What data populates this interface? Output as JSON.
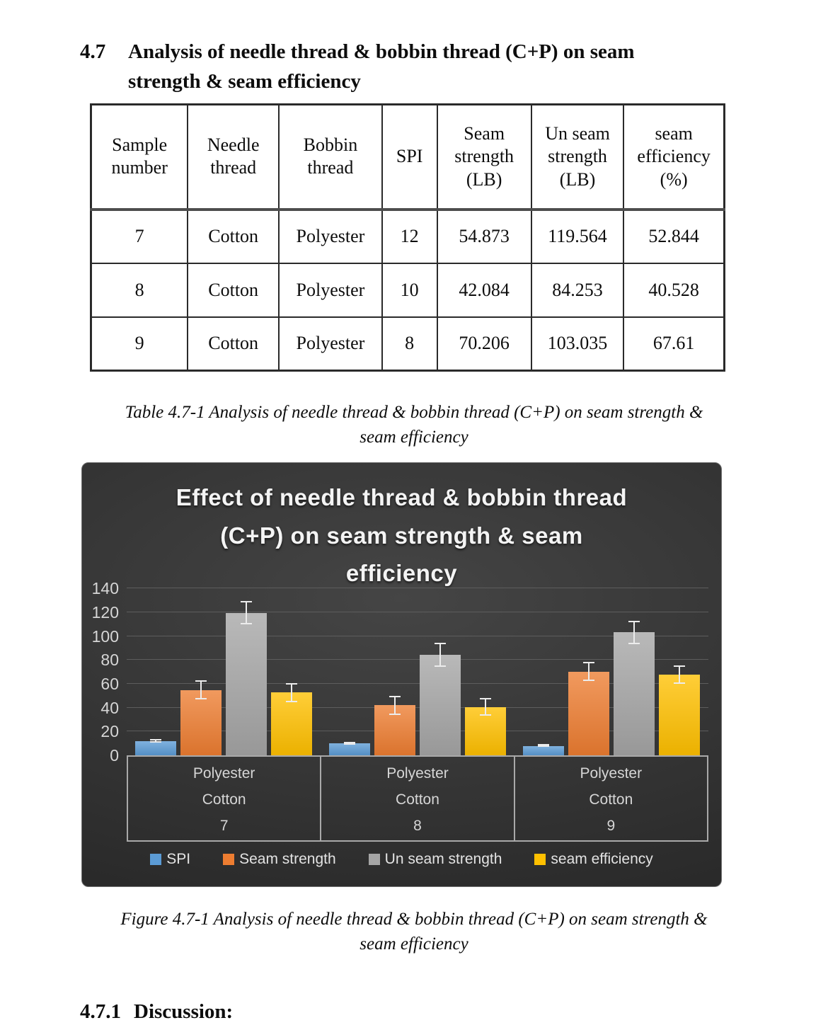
{
  "page": {
    "heading": {
      "number": "4.7",
      "text": "Analysis of needle thread & bobbin thread (C+P) on seam\nstrength & seam efficiency"
    },
    "table_caption": "Table 4.7-1 Analysis of needle thread & bobbin thread (C+P) on seam strength &\nseam efficiency",
    "figure_caption": "Figure 4.7-1 Analysis of needle thread & bobbin thread (C+P) on seam strength &\nseam efficiency",
    "discussion_heading": {
      "number": "4.7.1",
      "text": "Discussion:"
    }
  },
  "table": {
    "headers": [
      "Sample number",
      "Needle thread",
      "Bobbin thread",
      "SPI",
      "Seam strength (LB)",
      "Un seam strength (LB)",
      "seam efficiency (%)"
    ],
    "rows": [
      [
        "7",
        "Cotton",
        "Polyester",
        "12",
        "54.873",
        "119.564",
        "52.844"
      ],
      [
        "8",
        "Cotton",
        "Polyester",
        "10",
        "42.084",
        "84.253",
        "40.528"
      ],
      [
        "9",
        "Cotton",
        "Polyester",
        "8",
        "70.206",
        "103.035",
        "67.61"
      ]
    ]
  },
  "chart_data": {
    "type": "bar",
    "title": "Effect of needle thread & bobbin thread\n(C+P)  on seam strength & seam\nefficiency",
    "background_style": "dark-gradient",
    "categories": [
      {
        "bobbin_thread": "Polyester",
        "needle_thread": "Cotton",
        "sample": "7"
      },
      {
        "bobbin_thread": "Polyester",
        "needle_thread": "Cotton",
        "sample": "8"
      },
      {
        "bobbin_thread": "Polyester",
        "needle_thread": "Cotton",
        "sample": "9"
      }
    ],
    "series": [
      {
        "name": "SPI",
        "color": "#5B9BD5",
        "values": [
          12,
          10,
          8
        ],
        "error": [
          1.5,
          1,
          1
        ]
      },
      {
        "name": "Seam strength",
        "color": "#ED7D31",
        "values": [
          54.873,
          42.084,
          70.206
        ],
        "error": [
          8,
          8,
          8
        ]
      },
      {
        "name": "Un seam strength",
        "color": "#A5A5A5",
        "values": [
          119.564,
          84.253,
          103.035
        ],
        "error": [
          10,
          10,
          10
        ]
      },
      {
        "name": "seam efficiency",
        "color": "#FFC000",
        "values": [
          52.844,
          40.528,
          67.61
        ],
        "error": [
          8,
          7.5,
          7.5
        ]
      }
    ],
    "ylim": [
      0,
      140
    ],
    "yticks": [
      0,
      20,
      40,
      60,
      80,
      100,
      120,
      140
    ],
    "grid": true,
    "error_bars": true,
    "legend_position": "bottom"
  }
}
